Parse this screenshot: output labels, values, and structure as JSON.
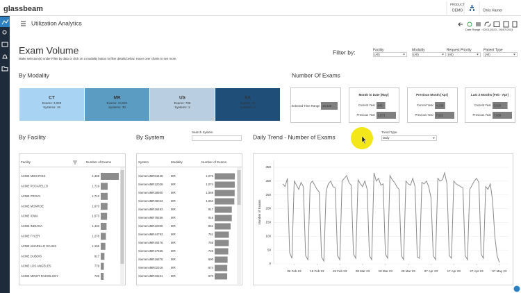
{
  "header": {
    "logo": "glassbeam",
    "product_label": "PRODUCT",
    "product": "DEMO",
    "user": "Chris Harner"
  },
  "page": {
    "title": "Utilization Analytics",
    "date_range": "Date Range : 02/01/2023 - 05/07/2023"
  },
  "exam_volume": {
    "title": "Exam Volume",
    "subtitle": "Make selection(s) under Filter by data or click on a modality button to filter details below. Hover over charts to see more."
  },
  "filters": {
    "label": "Filter by:",
    "items": [
      {
        "label": "Facility",
        "value": "(All)"
      },
      {
        "label": "Modality",
        "value": "(All)"
      },
      {
        "label": "Request Priority",
        "value": "(All)"
      },
      {
        "label": "Patient Type",
        "value": "(All)"
      }
    ]
  },
  "by_modality": {
    "title": "By Modality",
    "tiles": [
      {
        "name": "CT",
        "exams": "Exams: 3,023",
        "systems": "Systems: 16"
      },
      {
        "name": "MR",
        "exams": "Exams: 13,621",
        "systems": "Systems: 30"
      },
      {
        "name": "US",
        "exams": "Exams: 706",
        "systems": "Systems: 2"
      },
      {
        "name": "XA",
        "exams": "Exams: 29",
        "systems": "Systems: 2"
      }
    ]
  },
  "number_of_exams": {
    "title": "Number Of Exams",
    "selected": {
      "label": "Selected Time Range",
      "value": 18129,
      "value_label": "18,129"
    },
    "boxes": [
      {
        "title": "Month to Date [May]",
        "categories": [
          "Current Year",
          "Previous Year"
        ],
        "values": [
          843,
          1873
        ],
        "value_labels": [
          "843",
          "1,873"
        ]
      },
      {
        "title": "Previous Month [Apr]",
        "categories": [
          "Current Year",
          "Previous Year"
        ],
        "values": [
          4236,
          7922
        ],
        "value_labels": [
          "4,236",
          "7,922"
        ]
      },
      {
        "title": "Last 3 Months [Feb - Apr]",
        "categories": [
          "Current Year",
          "Previous Year"
        ],
        "values": [
          5929,
          7689
        ],
        "value_labels": [
          "5,929",
          "7,689"
        ]
      }
    ]
  },
  "by_facility": {
    "title": "By Facility",
    "columns": [
      "Facility",
      "Number of Exams"
    ],
    "categories": [
      "ACME MIDCITIES",
      "ACME POCATELLO",
      "ACME PROVA",
      "ACME MONROE",
      "ACME IOWA",
      "ACME INDIANA",
      "ACME TYLER",
      "ACME AMARILLO SCANS",
      "ACME DUBOIS",
      "ACME LOS ANGELES",
      "ACME MINOT RADIOLOGY"
    ],
    "values": [
      4469,
      1719,
      1712,
      1673,
      1573,
      1433,
      1278,
      1155,
      917,
      779,
      726
    ],
    "value_labels": [
      "4,469",
      "1,719",
      "1,712",
      "1,673",
      "1,573",
      "1,433",
      "1,278",
      "1,155",
      "917",
      "779",
      "726"
    ]
  },
  "by_system": {
    "title": "By System",
    "search_label": "Search System",
    "columns": [
      "System",
      "Modality",
      "Number of Exams"
    ],
    "categories": [
      "SiemensMR84428",
      "SiemensMR12029",
      "SiemensMR28600",
      "SiemensMR36043",
      "SiemensMR26493",
      "SiemensMR79256",
      "SiemensMR22000",
      "SiemensMR44793",
      "SiemensMR40476",
      "SiemensMR17565",
      "SiemensMR16878",
      "SiemensMR02316",
      "SiemensMR33101"
    ],
    "modalities": [
      "MR",
      "MR",
      "MR",
      "MR",
      "MR",
      "MR",
      "MR",
      "MR",
      "MR",
      "MR",
      "MR",
      "MR",
      "MR"
    ],
    "values": [
      1076,
      1074,
      1069,
      1052,
      917,
      916,
      851,
      761,
      755,
      726,
      690,
      674,
      670
    ],
    "value_labels": [
      "1,076",
      "1,074",
      "1,069",
      "1,052",
      "917",
      "916",
      "851",
      "761",
      "755",
      "726",
      "690",
      "674",
      "670"
    ]
  },
  "trend_controls": {
    "label": "Trend Type",
    "value": "Daily"
  },
  "chart_data": {
    "type": "line",
    "title": "Daily Trend - Number of Exams",
    "y_label": "Number of Exams",
    "color": "#8a8a8a",
    "grid": true,
    "x": [
      "2023-02-01",
      "2023-02-02",
      "2023-02-03",
      "2023-02-04",
      "2023-02-05",
      "2023-02-06",
      "2023-02-07",
      "2023-02-08",
      "2023-02-09",
      "2023-02-10",
      "2023-02-11",
      "2023-02-12",
      "2023-02-13",
      "2023-02-14",
      "2023-02-15",
      "2023-02-16",
      "2023-02-17",
      "2023-02-18",
      "2023-02-19",
      "2023-02-20",
      "2023-02-21",
      "2023-02-22",
      "2023-02-23",
      "2023-02-24",
      "2023-02-25",
      "2023-02-26",
      "2023-02-27",
      "2023-02-28",
      "2023-03-01",
      "2023-03-02",
      "2023-03-03",
      "2023-03-04",
      "2023-03-05",
      "2023-03-06",
      "2023-03-07",
      "2023-03-08",
      "2023-03-09",
      "2023-03-10",
      "2023-03-11",
      "2023-03-12",
      "2023-03-13",
      "2023-03-14",
      "2023-03-15",
      "2023-03-16",
      "2023-03-17",
      "2023-03-18",
      "2023-03-19",
      "2023-03-20",
      "2023-03-21",
      "2023-03-22",
      "2023-03-23",
      "2023-03-24",
      "2023-03-25",
      "2023-03-26",
      "2023-03-27",
      "2023-03-28",
      "2023-03-29",
      "2023-03-30",
      "2023-03-31",
      "2023-04-01",
      "2023-04-02",
      "2023-04-03",
      "2023-04-04",
      "2023-04-05",
      "2023-04-06",
      "2023-04-07",
      "2023-04-08",
      "2023-04-09",
      "2023-04-10",
      "2023-04-11",
      "2023-04-12",
      "2023-04-13",
      "2023-04-14",
      "2023-04-15",
      "2023-04-16",
      "2023-04-17",
      "2023-04-18",
      "2023-04-19",
      "2023-04-20",
      "2023-04-21",
      "2023-04-22",
      "2023-04-23",
      "2023-04-24",
      "2023-04-25",
      "2023-04-26",
      "2023-04-27",
      "2023-04-28",
      "2023-04-29",
      "2023-04-30",
      "2023-05-01",
      "2023-05-02",
      "2023-05-03",
      "2023-05-04",
      "2023-05-05",
      "2023-05-06",
      "2023-05-07"
    ],
    "values": [
      290,
      280,
      310,
      40,
      20,
      300,
      285,
      270,
      295,
      280,
      30,
      15,
      290,
      300,
      285,
      270,
      260,
      25,
      10,
      265,
      290,
      300,
      280,
      275,
      30,
      15,
      300,
      310,
      320,
      295,
      285,
      35,
      20,
      305,
      290,
      280,
      300,
      270,
      30,
      15,
      330,
      300,
      310,
      285,
      290,
      35,
      20,
      320,
      305,
      295,
      280,
      270,
      30,
      15,
      300,
      290,
      285,
      310,
      280,
      25,
      20,
      295,
      290,
      300,
      280,
      240,
      30,
      15,
      310,
      300,
      305,
      330,
      290,
      30,
      20,
      300,
      290,
      285,
      280,
      275,
      30,
      15,
      270,
      285,
      300,
      310,
      295,
      35,
      20,
      280,
      270,
      290,
      230,
      100,
      30,
      5
    ],
    "xlim": [
      "2023-01-28",
      "2023-05-11"
    ],
    "xticks": [
      {
        "value": "2023-02-06",
        "label": "06 Feb 23"
      },
      {
        "value": "2023-02-16",
        "label": "16 Feb 23"
      },
      {
        "value": "2023-02-26",
        "label": "26 Feb 23"
      },
      {
        "value": "2023-03-08",
        "label": "08 Mar 23"
      },
      {
        "value": "2023-03-18",
        "label": "18 Mar 23"
      },
      {
        "value": "2023-03-28",
        "label": "28 Mar 23"
      },
      {
        "value": "2023-04-07",
        "label": "07 Apr 23"
      },
      {
        "value": "2023-04-17",
        "label": "17 Apr 23"
      },
      {
        "value": "2023-04-27",
        "label": "27 Apr 23"
      },
      {
        "value": "2023-05-07",
        "label": "07 May 23"
      }
    ],
    "ylim": [
      0,
      375
    ],
    "yticks": [
      0,
      50,
      100,
      150,
      200,
      250,
      300,
      350
    ]
  }
}
